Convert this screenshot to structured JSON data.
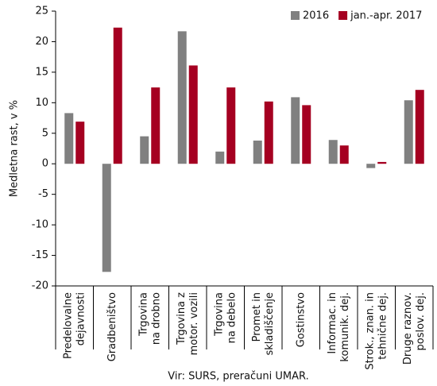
{
  "chart_data": {
    "type": "bar",
    "y_label": "Medletna rast, v %",
    "source": "Vir: SURS, preračuni UMAR.",
    "categories": [
      [
        "Predelovalne",
        "dejavnosti"
      ],
      [
        "Gradbeništvo"
      ],
      [
        "Trgovina",
        "na drobno"
      ],
      [
        "Trgovina z",
        "motor. vozili"
      ],
      [
        "Trgovina",
        "na debelo"
      ],
      [
        "Promet in",
        "skladiščenje"
      ],
      [
        "Gostinstvo"
      ],
      [
        "Informac. in",
        "komunik. dej."
      ],
      [
        "Strok., znan. in",
        "tehnične dej."
      ],
      [
        "Druge raznov.",
        "poslov. dej."
      ]
    ],
    "series": [
      {
        "name": "2016",
        "color": "#808080",
        "values": [
          8.3,
          -17.7,
          4.5,
          21.7,
          2.0,
          3.8,
          10.9,
          3.9,
          -0.7,
          10.4
        ]
      },
      {
        "name": "jan.-apr. 2017",
        "color": "#a50021",
        "values": [
          6.9,
          22.3,
          12.5,
          16.1,
          12.5,
          10.2,
          9.6,
          3.0,
          0.3,
          12.1
        ]
      }
    ],
    "ylim": [
      -20,
      25
    ],
    "yticks": [
      -20,
      -15,
      -10,
      -5,
      0,
      5,
      10,
      15,
      20,
      25
    ],
    "legend": "top-right",
    "grid": false
  }
}
